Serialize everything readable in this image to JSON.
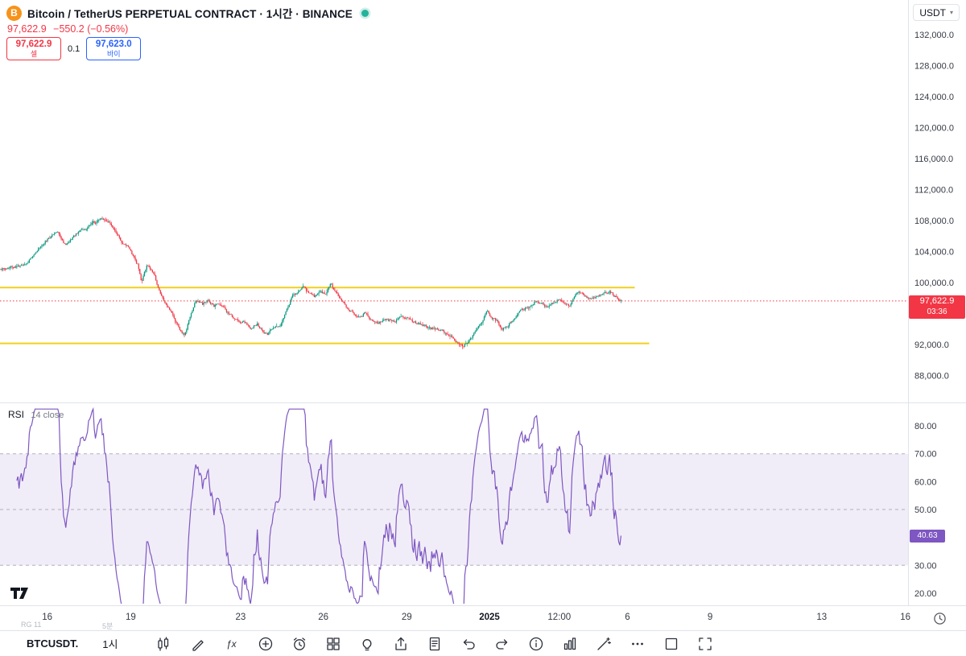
{
  "header": {
    "symbol_title": "Bitcoin / TetherUS PERPETUAL CONTRACT · 1시간 · BINANCE",
    "market_status": "open",
    "last_price": "97,622.9",
    "change": "−550.2 (−0.56%)",
    "sell_price": "97,622.9",
    "sell_label": "셀",
    "spread": "0.1",
    "buy_price": "97,623.0",
    "buy_label": "바이",
    "currency": "USDT"
  },
  "price_scale": {
    "current_price": "97,622.9",
    "countdown": "03:36"
  },
  "rsi_pane": {
    "title": "RSI",
    "params": "14 close",
    "value": "40.63"
  },
  "watermarks": {
    "left1": "RG 11",
    "left2": "5분"
  },
  "toolbar": {
    "symbol": "BTCUSDT.",
    "interval": "1시",
    "icons": [
      "candles-icon",
      "pencil-icon",
      "fx-icon",
      "plus-circle-icon",
      "alarm-clock-icon",
      "grid-icon",
      "lightbulb-icon",
      "share-icon",
      "document-list-icon",
      "undo-arrow-icon",
      "redo-arrow-icon",
      "info-icon",
      "columns-icon",
      "wand-icon",
      "ellipsis-icon",
      "square-icon",
      "fullscreen-icon"
    ]
  },
  "chart_data": [
    {
      "type": "candlestick",
      "title": "Bitcoin / TetherUS PERPETUAL CONTRACT",
      "interval": "1시간",
      "exchange": "BINANCE",
      "last_price": 97622.9,
      "change": -550.2,
      "change_pct": -0.56,
      "bar_count": 545,
      "x_extent": 0.683,
      "ylim": [
        86000,
        134500
      ],
      "colors": {
        "up": "#089981",
        "down": "#f23645"
      },
      "y_axis": {
        "ticks": [
          132000,
          128000,
          124000,
          120000,
          116000,
          112000,
          108000,
          104000,
          100000,
          96000,
          92000,
          88000
        ],
        "tick_labels": [
          "132,000.0",
          "128,000.0",
          "124,000.0",
          "120,000.0",
          "116,000.0",
          "112,000.0",
          "108,000.0",
          "104,000.0",
          "100,000.0",
          "96,000.0",
          "92,000.0",
          "88,000.0"
        ]
      },
      "x_axis": {
        "ticks": [
          {
            "label": "16",
            "t": 0.052
          },
          {
            "label": "19",
            "t": 0.144
          },
          {
            "label": "23",
            "t": 0.265
          },
          {
            "label": "26",
            "t": 0.356
          },
          {
            "label": "29",
            "t": 0.448
          },
          {
            "label": "2025",
            "t": 0.539,
            "bold": true
          },
          {
            "label": "12:00",
            "t": 0.616
          },
          {
            "label": "6",
            "t": 0.691
          },
          {
            "label": "9",
            "t": 0.782
          },
          {
            "label": "13",
            "t": 0.905
          },
          {
            "label": "16",
            "t": 0.997
          }
        ]
      },
      "levels": {
        "resistance": {
          "price": 99350,
          "color": "#f2cf1c",
          "extent": 0.699
        },
        "support": {
          "price": 92150,
          "color": "#f2cf1c",
          "extent": 0.715
        },
        "last_price_line": {
          "price": 97622.9,
          "color": "#f23645"
        }
      },
      "price_path_keypoints": [
        [
          0,
          101700
        ],
        [
          0.039,
          102200
        ],
        [
          0.071,
          105300
        ],
        [
          0.091,
          106500
        ],
        [
          0.104,
          104800
        ],
        [
          0.123,
          106300
        ],
        [
          0.143,
          107400
        ],
        [
          0.162,
          108200
        ],
        [
          0.175,
          107600
        ],
        [
          0.195,
          105300
        ],
        [
          0.208,
          104300
        ],
        [
          0.221,
          102200
        ],
        [
          0.227,
          99900
        ],
        [
          0.236,
          102400
        ],
        [
          0.247,
          101100
        ],
        [
          0.26,
          98000
        ],
        [
          0.27,
          96800
        ],
        [
          0.279,
          95400
        ],
        [
          0.288,
          94100
        ],
        [
          0.296,
          93300
        ],
        [
          0.305,
          95400
        ],
        [
          0.314,
          97800
        ],
        [
          0.325,
          97200
        ],
        [
          0.335,
          97700
        ],
        [
          0.344,
          97000
        ],
        [
          0.353,
          97200
        ],
        [
          0.364,
          96200
        ],
        [
          0.374,
          95400
        ],
        [
          0.383,
          94900
        ],
        [
          0.392,
          95100
        ],
        [
          0.403,
          94100
        ],
        [
          0.413,
          94700
        ],
        [
          0.422,
          93700
        ],
        [
          0.431,
          93350
        ],
        [
          0.442,
          94400
        ],
        [
          0.452,
          94700
        ],
        [
          0.461,
          96500
        ],
        [
          0.47,
          98200
        ],
        [
          0.481,
          99050
        ],
        [
          0.488,
          99500
        ],
        [
          0.496,
          98550
        ],
        [
          0.506,
          98230
        ],
        [
          0.516,
          98850
        ],
        [
          0.523,
          98450
        ],
        [
          0.532,
          99800
        ],
        [
          0.54,
          98650
        ],
        [
          0.549,
          97800
        ],
        [
          0.558,
          96700
        ],
        [
          0.569,
          95950
        ],
        [
          0.579,
          95550
        ],
        [
          0.587,
          96050
        ],
        [
          0.597,
          95100
        ],
        [
          0.61,
          94900
        ],
        [
          0.623,
          95200
        ],
        [
          0.636,
          95100
        ],
        [
          0.649,
          95550
        ],
        [
          0.662,
          95000
        ],
        [
          0.675,
          94700
        ],
        [
          0.688,
          94200
        ],
        [
          0.701,
          94000
        ],
        [
          0.714,
          93650
        ],
        [
          0.725,
          93050
        ],
        [
          0.735,
          92300
        ],
        [
          0.745,
          91800
        ],
        [
          0.753,
          92400
        ],
        [
          0.764,
          93450
        ],
        [
          0.774,
          94700
        ],
        [
          0.784,
          96250
        ],
        [
          0.79,
          95550
        ],
        [
          0.799,
          95100
        ],
        [
          0.808,
          94100
        ],
        [
          0.816,
          94300
        ],
        [
          0.825,
          95100
        ],
        [
          0.834,
          95950
        ],
        [
          0.844,
          96600
        ],
        [
          0.855,
          97100
        ],
        [
          0.864,
          97600
        ],
        [
          0.873,
          97200
        ],
        [
          0.883,
          96900
        ],
        [
          0.892,
          97400
        ],
        [
          0.901,
          97900
        ],
        [
          0.909,
          97300
        ],
        [
          0.918,
          97000
        ],
        [
          0.926,
          98450
        ],
        [
          0.932,
          98850
        ],
        [
          0.942,
          98230
        ],
        [
          0.951,
          97900
        ],
        [
          0.961,
          98230
        ],
        [
          0.971,
          98450
        ],
        [
          0.981,
          98750
        ],
        [
          0.99,
          98230
        ],
        [
          1,
          97623
        ]
      ]
    },
    {
      "type": "line",
      "name": "RSI",
      "params": "14 close",
      "last_value": 40.63,
      "range": [
        20,
        80
      ],
      "y_ticks": [
        80,
        70,
        60,
        50,
        30,
        20
      ],
      "y_tick_labels": [
        "80.00",
        "70.00",
        "60.00",
        "50.00",
        "30.00",
        "20.00"
      ],
      "bands": {
        "upper": 70,
        "middle": 50,
        "lower": 30
      },
      "color": "#7e57c2",
      "band_fill": "rgba(126,87,194,0.11)",
      "band_line_color": "#787b86"
    }
  ]
}
